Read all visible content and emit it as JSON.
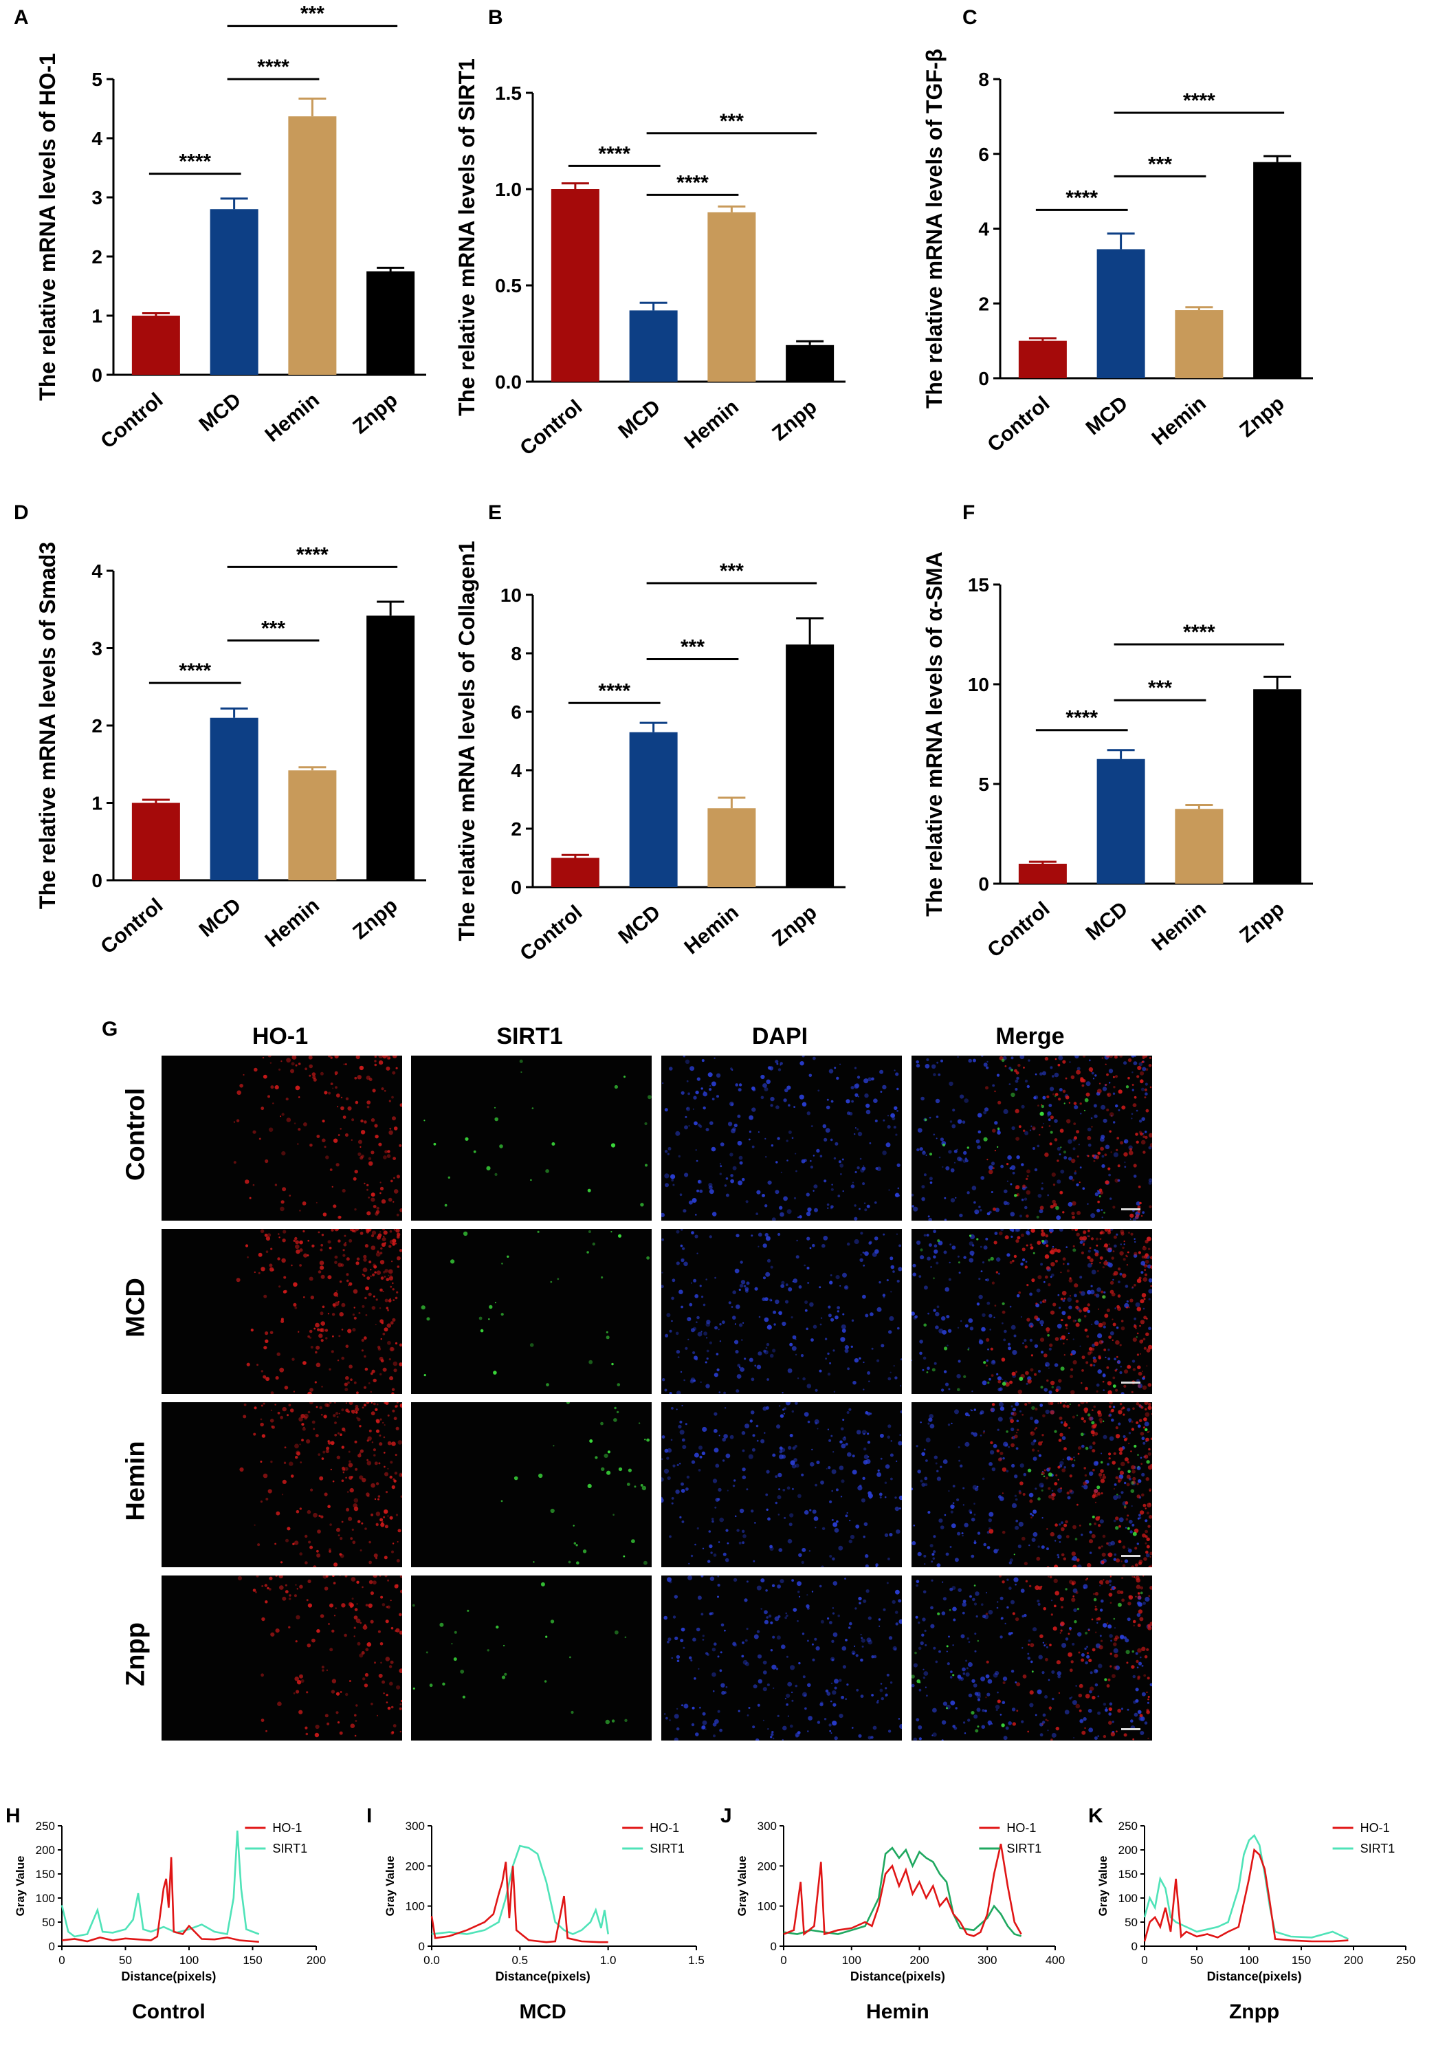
{
  "bar_panels": [
    {
      "letter": "A",
      "ylabel": "The relative mRNA levels of HO-1",
      "ymax": 5,
      "ticks": [
        "0",
        "1",
        "2",
        "3",
        "4",
        "5"
      ],
      "values": [
        1.0,
        2.8,
        4.37,
        1.75
      ],
      "errors": [
        0.04,
        0.18,
        0.3,
        0.06
      ],
      "sig": [
        {
          "a": 0,
          "b": 1,
          "y": 3.4,
          "label": "****"
        },
        {
          "a": 1,
          "b": 2,
          "y": 5.0,
          "label": "****"
        },
        {
          "a": 1,
          "b": 3,
          "y": 5.9,
          "label": "***"
        }
      ]
    },
    {
      "letter": "B",
      "ylabel": "The relative mRNA levels of SIRT1",
      "ymax": 1.5,
      "ticks": [
        "0.0",
        "0.5",
        "1.0",
        "1.5"
      ],
      "values": [
        1.0,
        0.37,
        0.88,
        0.19
      ],
      "errors": [
        0.03,
        0.04,
        0.03,
        0.02
      ],
      "sig": [
        {
          "a": 0,
          "b": 1,
          "y": 1.12,
          "label": "****"
        },
        {
          "a": 1,
          "b": 2,
          "y": 0.97,
          "label": "****"
        },
        {
          "a": 1,
          "b": 3,
          "y": 1.29,
          "label": "***"
        }
      ]
    },
    {
      "letter": "C",
      "ylabel": "The relative mRNA levels of TGF-β",
      "ymax": 8,
      "ticks": [
        "0",
        "2",
        "4",
        "6",
        "8"
      ],
      "values": [
        1.0,
        3.45,
        1.82,
        5.78
      ],
      "errors": [
        0.07,
        0.42,
        0.08,
        0.16
      ],
      "sig": [
        {
          "a": 0,
          "b": 1,
          "y": 4.5,
          "label": "****"
        },
        {
          "a": 1,
          "b": 2,
          "y": 5.4,
          "label": "***"
        },
        {
          "a": 1,
          "b": 3,
          "y": 7.1,
          "label": "****"
        }
      ]
    },
    {
      "letter": "D",
      "ylabel": "The relative mRNA levels of Smad3",
      "ymax": 4,
      "ticks": [
        "0",
        "1",
        "2",
        "3",
        "4"
      ],
      "values": [
        1.0,
        2.1,
        1.42,
        3.42
      ],
      "errors": [
        0.04,
        0.12,
        0.04,
        0.18
      ],
      "sig": [
        {
          "a": 0,
          "b": 1,
          "y": 2.55,
          "label": "****"
        },
        {
          "a": 1,
          "b": 2,
          "y": 3.1,
          "label": "***"
        },
        {
          "a": 1,
          "b": 3,
          "y": 4.05,
          "label": "****"
        }
      ]
    },
    {
      "letter": "E",
      "ylabel": "The relative mRNA levels of Collagen1",
      "ymax": 10,
      "ticks": [
        "0",
        "2",
        "4",
        "6",
        "8",
        "10"
      ],
      "values": [
        1.0,
        5.3,
        2.7,
        8.3
      ],
      "errors": [
        0.1,
        0.32,
        0.36,
        0.9
      ],
      "sig": [
        {
          "a": 0,
          "b": 1,
          "y": 6.3,
          "label": "****"
        },
        {
          "a": 1,
          "b": 2,
          "y": 7.8,
          "label": "***"
        },
        {
          "a": 1,
          "b": 3,
          "y": 10.4,
          "label": "***"
        }
      ]
    },
    {
      "letter": "F",
      "ylabel": "The relative mRNA levels of α-SMA",
      "ymax": 15,
      "ticks": [
        "0",
        "5",
        "10",
        "15"
      ],
      "values": [
        1.0,
        6.25,
        3.75,
        9.75
      ],
      "errors": [
        0.1,
        0.45,
        0.2,
        0.62
      ],
      "sig": [
        {
          "a": 0,
          "b": 1,
          "y": 7.7,
          "label": "****"
        },
        {
          "a": 1,
          "b": 2,
          "y": 9.2,
          "label": "***"
        },
        {
          "a": 1,
          "b": 3,
          "y": 12.0,
          "label": "****"
        }
      ]
    }
  ],
  "groups": [
    "Control",
    "MCD",
    "Hemin",
    "Znpp"
  ],
  "bar_colors": [
    "#a50a0a",
    "#0d3f85",
    "#c89a5a",
    "#000000"
  ],
  "grid": {
    "letter": "G",
    "columns": [
      "HO-1",
      "SIRT1",
      "DAPI",
      "Merge"
    ],
    "rows": [
      "Control",
      "MCD",
      "Hemin",
      "Znpp"
    ]
  },
  "line_panels": [
    {
      "letter": "H",
      "title": "Control",
      "xlabel": "Distance(pixels)",
      "ylabel": "Gray Value",
      "xlim": [
        0,
        200
      ],
      "xticks": [
        "0",
        "50",
        "100",
        "150",
        "200"
      ],
      "ylim": [
        0,
        250
      ],
      "yticks": [
        "0",
        "50",
        "100",
        "150",
        "200",
        "250"
      ],
      "legend": [
        "HO-1",
        "SIRT1"
      ],
      "ho1": [
        [
          0,
          12
        ],
        [
          10,
          15
        ],
        [
          20,
          10
        ],
        [
          30,
          18
        ],
        [
          40,
          12
        ],
        [
          50,
          16
        ],
        [
          60,
          14
        ],
        [
          70,
          12
        ],
        [
          75,
          20
        ],
        [
          80,
          120
        ],
        [
          82,
          140
        ],
        [
          84,
          80
        ],
        [
          86,
          185
        ],
        [
          88,
          30
        ],
        [
          95,
          25
        ],
        [
          100,
          42
        ],
        [
          110,
          15
        ],
        [
          120,
          14
        ],
        [
          130,
          18
        ],
        [
          140,
          12
        ],
        [
          150,
          10
        ],
        [
          155,
          9
        ]
      ],
      "sirt1": [
        [
          0,
          85
        ],
        [
          5,
          30
        ],
        [
          10,
          20
        ],
        [
          20,
          25
        ],
        [
          28,
          75
        ],
        [
          32,
          30
        ],
        [
          40,
          28
        ],
        [
          50,
          35
        ],
        [
          56,
          55
        ],
        [
          60,
          110
        ],
        [
          64,
          35
        ],
        [
          70,
          30
        ],
        [
          80,
          40
        ],
        [
          90,
          28
        ],
        [
          100,
          35
        ],
        [
          110,
          45
        ],
        [
          120,
          30
        ],
        [
          130,
          25
        ],
        [
          135,
          100
        ],
        [
          138,
          240
        ],
        [
          141,
          120
        ],
        [
          145,
          35
        ],
        [
          150,
          30
        ],
        [
          155,
          25
        ]
      ]
    },
    {
      "letter": "I",
      "title": "MCD",
      "xlabel": "Distance(pixels)",
      "ylabel": "Gray Value",
      "xlim": [
        0,
        1.5
      ],
      "xticks": [
        "0.0",
        "0.5",
        "1.0",
        "1.5"
      ],
      "ylim": [
        0,
        300
      ],
      "yticks": [
        "0",
        "100",
        "200",
        "300"
      ],
      "legend": [
        "HO-1",
        "SIRT1"
      ],
      "ho1": [
        [
          0,
          75
        ],
        [
          0.02,
          20
        ],
        [
          0.1,
          25
        ],
        [
          0.2,
          40
        ],
        [
          0.3,
          60
        ],
        [
          0.35,
          80
        ],
        [
          0.38,
          130
        ],
        [
          0.4,
          160
        ],
        [
          0.42,
          210
        ],
        [
          0.44,
          70
        ],
        [
          0.46,
          200
        ],
        [
          0.48,
          40
        ],
        [
          0.55,
          15
        ],
        [
          0.65,
          10
        ],
        [
          0.7,
          12
        ],
        [
          0.75,
          125
        ],
        [
          0.77,
          20
        ],
        [
          0.85,
          12
        ],
        [
          0.95,
          10
        ],
        [
          1.0,
          10
        ]
      ],
      "sirt1": [
        [
          0,
          30
        ],
        [
          0.1,
          35
        ],
        [
          0.2,
          30
        ],
        [
          0.3,
          40
        ],
        [
          0.38,
          60
        ],
        [
          0.42,
          120
        ],
        [
          0.46,
          200
        ],
        [
          0.5,
          250
        ],
        [
          0.55,
          245
        ],
        [
          0.6,
          230
        ],
        [
          0.65,
          160
        ],
        [
          0.7,
          60
        ],
        [
          0.75,
          40
        ],
        [
          0.8,
          30
        ],
        [
          0.85,
          40
        ],
        [
          0.9,
          60
        ],
        [
          0.93,
          90
        ],
        [
          0.96,
          45
        ],
        [
          0.98,
          90
        ],
        [
          1.0,
          30
        ]
      ]
    },
    {
      "letter": "J",
      "title": "Hemin",
      "xlabel": "Distance(pixels)",
      "ylabel": "Gray Value",
      "xlim": [
        0,
        400
      ],
      "xticks": [
        "0",
        "100",
        "200",
        "300",
        "400"
      ],
      "ylim": [
        0,
        300
      ],
      "yticks": [
        "0",
        "100",
        "200",
        "300"
      ],
      "legend": [
        "HO-1",
        "SIRT1"
      ],
      "ho1": [
        [
          0,
          30
        ],
        [
          15,
          40
        ],
        [
          25,
          160
        ],
        [
          30,
          30
        ],
        [
          45,
          50
        ],
        [
          55,
          210
        ],
        [
          60,
          30
        ],
        [
          80,
          40
        ],
        [
          100,
          45
        ],
        [
          120,
          60
        ],
        [
          130,
          50
        ],
        [
          140,
          100
        ],
        [
          150,
          180
        ],
        [
          160,
          200
        ],
        [
          170,
          150
        ],
        [
          180,
          190
        ],
        [
          190,
          130
        ],
        [
          200,
          160
        ],
        [
          210,
          120
        ],
        [
          220,
          150
        ],
        [
          230,
          100
        ],
        [
          240,
          120
        ],
        [
          250,
          80
        ],
        [
          260,
          60
        ],
        [
          270,
          30
        ],
        [
          280,
          25
        ],
        [
          290,
          35
        ],
        [
          300,
          80
        ],
        [
          310,
          180
        ],
        [
          320,
          255
        ],
        [
          330,
          150
        ],
        [
          340,
          60
        ],
        [
          350,
          30
        ]
      ],
      "sirt1": [
        [
          0,
          35
        ],
        [
          20,
          30
        ],
        [
          40,
          40
        ],
        [
          60,
          35
        ],
        [
          80,
          30
        ],
        [
          100,
          40
        ],
        [
          120,
          50
        ],
        [
          140,
          120
        ],
        [
          150,
          230
        ],
        [
          160,
          245
        ],
        [
          170,
          220
        ],
        [
          180,
          240
        ],
        [
          190,
          200
        ],
        [
          200,
          235
        ],
        [
          210,
          220
        ],
        [
          220,
          210
        ],
        [
          230,
          180
        ],
        [
          240,
          160
        ],
        [
          250,
          80
        ],
        [
          260,
          45
        ],
        [
          280,
          40
        ],
        [
          300,
          70
        ],
        [
          310,
          100
        ],
        [
          320,
          80
        ],
        [
          330,
          50
        ],
        [
          340,
          30
        ],
        [
          350,
          25
        ]
      ]
    },
    {
      "letter": "K",
      "title": "Znpp",
      "xlabel": "Distance(pixels)",
      "ylabel": "Gray Value",
      "xlim": [
        0,
        250
      ],
      "xticks": [
        "0",
        "50",
        "100",
        "150",
        "200",
        "250"
      ],
      "ylim": [
        0,
        250
      ],
      "yticks": [
        "0",
        "50",
        "100",
        "150",
        "200",
        "250"
      ],
      "legend": [
        "HO-1",
        "SIRT1"
      ],
      "ho1": [
        [
          0,
          10
        ],
        [
          5,
          50
        ],
        [
          10,
          60
        ],
        [
          15,
          40
        ],
        [
          20,
          80
        ],
        [
          25,
          30
        ],
        [
          30,
          140
        ],
        [
          35,
          20
        ],
        [
          40,
          30
        ],
        [
          50,
          20
        ],
        [
          60,
          25
        ],
        [
          70,
          18
        ],
        [
          80,
          30
        ],
        [
          90,
          40
        ],
        [
          100,
          140
        ],
        [
          105,
          200
        ],
        [
          110,
          190
        ],
        [
          115,
          160
        ],
        [
          120,
          90
        ],
        [
          125,
          15
        ],
        [
          140,
          12
        ],
        [
          160,
          10
        ],
        [
          180,
          10
        ],
        [
          195,
          12
        ]
      ],
      "sirt1": [
        [
          0,
          60
        ],
        [
          5,
          100
        ],
        [
          10,
          80
        ],
        [
          15,
          140
        ],
        [
          20,
          120
        ],
        [
          25,
          60
        ],
        [
          30,
          50
        ],
        [
          40,
          40
        ],
        [
          50,
          30
        ],
        [
          60,
          35
        ],
        [
          70,
          40
        ],
        [
          80,
          50
        ],
        [
          90,
          120
        ],
        [
          95,
          190
        ],
        [
          100,
          220
        ],
        [
          105,
          230
        ],
        [
          110,
          210
        ],
        [
          115,
          150
        ],
        [
          120,
          80
        ],
        [
          125,
          30
        ],
        [
          140,
          20
        ],
        [
          160,
          18
        ],
        [
          180,
          30
        ],
        [
          190,
          20
        ],
        [
          195,
          15
        ]
      ]
    }
  ]
}
